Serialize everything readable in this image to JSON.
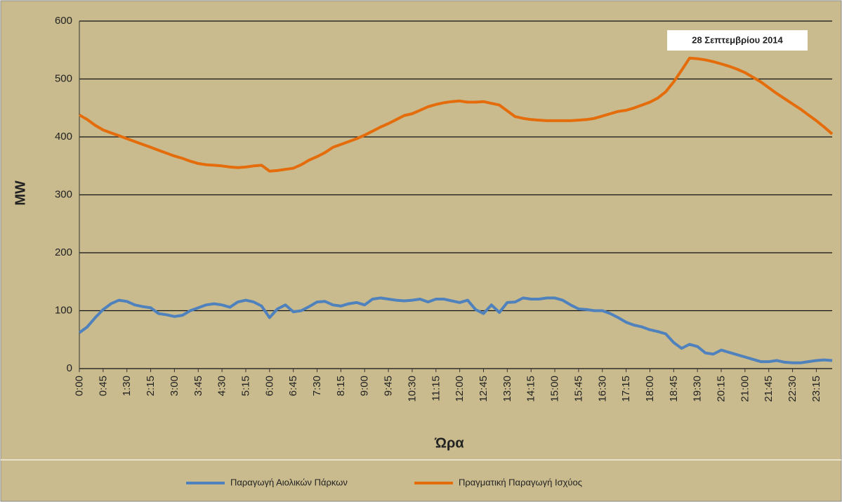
{
  "chart_data": {
    "type": "line",
    "ylabel": "MW",
    "xlabel": "Ώρα",
    "annotation": "28 Σεπτεμβρίου 2014",
    "categories": [
      "0:00",
      null,
      null,
      "0:45",
      null,
      null,
      "1:30",
      null,
      null,
      "2:15",
      null,
      null,
      "3:00",
      null,
      null,
      "3:45",
      null,
      null,
      "4:30",
      null,
      null,
      "5:15",
      null,
      null,
      "6:00",
      null,
      null,
      "6:45",
      null,
      null,
      "7:30",
      null,
      null,
      "8:15",
      null,
      null,
      "9:00",
      null,
      null,
      "9:45",
      null,
      null,
      "10:30",
      null,
      null,
      "11:15",
      null,
      null,
      "12:00",
      null,
      null,
      "12:45",
      null,
      null,
      "13:30",
      null,
      null,
      "14:15",
      null,
      null,
      "15:00",
      null,
      null,
      "15:45",
      null,
      null,
      "16:30",
      null,
      null,
      "17:15",
      null,
      null,
      "18:00",
      null,
      null,
      "18:45",
      null,
      null,
      "19:30",
      null,
      null,
      "20:15",
      null,
      null,
      "21:00",
      null,
      null,
      "21:45",
      null,
      null,
      "22:30",
      null,
      null,
      "23:15",
      null,
      null
    ],
    "series": [
      {
        "name": "Παραγωγή Αιολικών Πάρκων",
        "color": "#4f81bd",
        "values": [
          62,
          72,
          88,
          102,
          112,
          118,
          116,
          110,
          107,
          105,
          95,
          93,
          90,
          92,
          100,
          105,
          110,
          112,
          110,
          106,
          115,
          118,
          115,
          108,
          88,
          103,
          110,
          98,
          100,
          107,
          115,
          116,
          110,
          108,
          112,
          114,
          110,
          120,
          122,
          120,
          118,
          117,
          118,
          120,
          115,
          120,
          120,
          117,
          114,
          118,
          102,
          95,
          110,
          97,
          114,
          115,
          122,
          120,
          120,
          122,
          122,
          118,
          110,
          103,
          102,
          100,
          100,
          95,
          88,
          80,
          75,
          72,
          67,
          64,
          60,
          45,
          35,
          42,
          38,
          27,
          25,
          32,
          28,
          24,
          20,
          16,
          12,
          12,
          14,
          11,
          10,
          10,
          12,
          14,
          15,
          14
        ]
      },
      {
        "name": "Πραγματική Παραγωγή Ισχύος",
        "color": "#e46c0a",
        "values": [
          438,
          430,
          420,
          412,
          407,
          402,
          397,
          392,
          387,
          382,
          377,
          372,
          367,
          363,
          358,
          354,
          352,
          351,
          350,
          348,
          347,
          348,
          350,
          351,
          341,
          342,
          344,
          346,
          352,
          360,
          366,
          373,
          382,
          387,
          392,
          397,
          403,
          410,
          417,
          423,
          430,
          437,
          440,
          446,
          452,
          456,
          459,
          461,
          462,
          460,
          460,
          461,
          458,
          455,
          445,
          435,
          432,
          430,
          429,
          428,
          428,
          428,
          428,
          429,
          430,
          432,
          436,
          440,
          444,
          446,
          450,
          455,
          460,
          467,
          478,
          495,
          515,
          536,
          535,
          533,
          530,
          526,
          522,
          517,
          511,
          503,
          495,
          485,
          475,
          466,
          457,
          448,
          438,
          428,
          417,
          405
        ]
      }
    ],
    "ylim": [
      0,
      600
    ],
    "yticks": [
      0,
      100,
      200,
      300,
      400,
      500,
      600
    ],
    "grid": true
  }
}
